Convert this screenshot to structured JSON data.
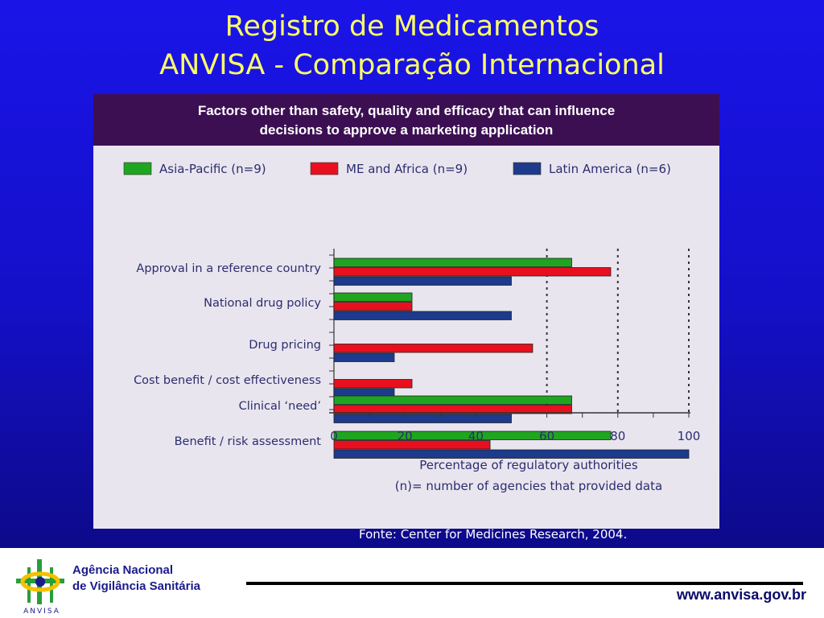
{
  "slide": {
    "title_line1": "Registro de Medicamentos",
    "title_line2": "ANVISA - Comparação Internacional",
    "source": "Fonte: Center for Medicines Research, 2004."
  },
  "footer": {
    "agency_line1": "Agência Nacional",
    "agency_line2": "de Vigilância Sanitária",
    "logo_text": "ANVISA",
    "url": "www.anvisa.gov.br"
  },
  "chart_data": {
    "type": "bar",
    "orientation": "horizontal",
    "title": "Factors other than safety, quality and efficacy that can influence decisions to approve a marketing application",
    "title_line1": "Factors other than safety, quality and efficacy that can influence",
    "title_line2": "decisions to approve a marketing application",
    "categories": [
      "Approval in a reference country",
      "National drug policy",
      "Drug pricing",
      "Cost benefit / cost effectiveness",
      "Clinical ‘need’",
      "Benefit / risk assessment"
    ],
    "series": [
      {
        "name": "Asia-Pacific (n=9)",
        "color": "#1fa51f",
        "values": [
          67,
          22,
          0,
          0,
          67,
          78
        ]
      },
      {
        "name": "ME and Africa (n=9)",
        "color": "#e8101e",
        "values": [
          78,
          22,
          56,
          22,
          67,
          44
        ]
      },
      {
        "name": "Latin America (n=6)",
        "color": "#1d3b8c",
        "values": [
          50,
          50,
          17,
          17,
          50,
          100
        ]
      }
    ],
    "xlim": [
      0,
      100
    ],
    "xticks": [
      "0",
      "20",
      "40",
      "60",
      "80",
      "100"
    ],
    "xlabel_line1": "Percentage of regulatory authorities",
    "xlabel_line2": "(n)= number of agencies that provided data",
    "legend_position": "top",
    "gridlines": "dotted vertical"
  }
}
